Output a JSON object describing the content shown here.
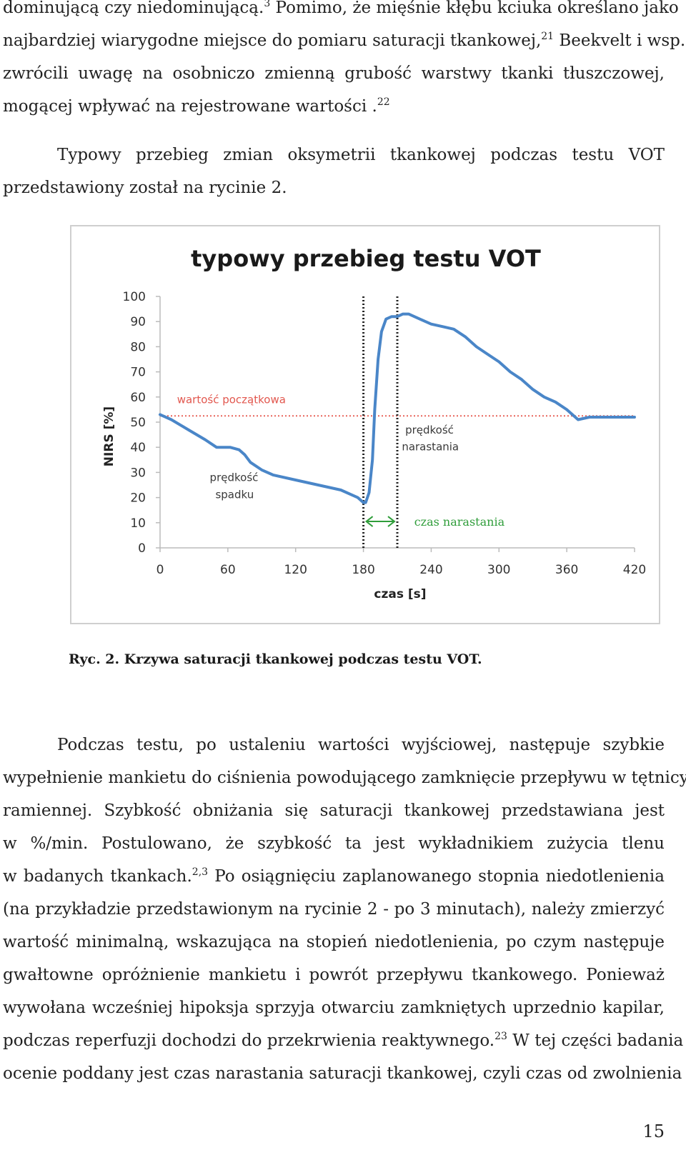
{
  "paragraph1": {
    "line1_a": "dominującą czy niedominującą.",
    "line1_sup": "3",
    "line1_b": " Pomimo, że mięśnie kłębu kciuka określano jako",
    "line2_a": "najbardziej wiarygodne miejsce do pomiaru saturacji tkankowej,",
    "line2_sup": "21",
    "line2_b": " Beekvelt i wsp.",
    "line3": "zwrócili uwagę na osobniczo zmienną grubość warstwy tkanki tłuszczowej,",
    "line4_a": "mogącej wpływać na rejestrowane wartości .",
    "line4_sup": "22"
  },
  "paragraph2": {
    "line1": "Typowy przebieg zmian oksymetrii tkankowej podczas testu VOT",
    "line2": "przedstawiony został na rycinie 2."
  },
  "chart_data": {
    "type": "line",
    "title": "typowy przebieg testu VOT",
    "xlabel": "czas [s]",
    "ylabel": "NIRS [%]",
    "xlim": [
      0,
      420
    ],
    "ylim": [
      0,
      100
    ],
    "x_ticks": [
      "0",
      "60",
      "120",
      "180",
      "240",
      "300",
      "360",
      "420"
    ],
    "y_ticks": [
      "0",
      "10",
      "20",
      "30",
      "40",
      "50",
      "60",
      "70",
      "80",
      "90",
      "100"
    ],
    "series": [
      {
        "name": "NIRS",
        "color": "#4a86c8",
        "x": [
          0,
          10,
          25,
          40,
          50,
          55,
          62,
          70,
          75,
          80,
          90,
          100,
          120,
          140,
          160,
          170,
          175,
          180,
          182,
          185,
          188,
          190,
          193,
          196,
          200,
          205,
          210,
          215,
          220,
          230,
          240,
          250,
          260,
          270,
          280,
          290,
          300,
          310,
          320,
          330,
          340,
          350,
          360,
          370,
          380,
          390,
          400,
          410,
          420
        ],
        "y": [
          53,
          51,
          47,
          43,
          40,
          40,
          40,
          39,
          37,
          34,
          31,
          29,
          27,
          25,
          23,
          21,
          20,
          18,
          18,
          22,
          35,
          55,
          75,
          86,
          91,
          92,
          92,
          93,
          93,
          91,
          89,
          88,
          87,
          84,
          80,
          77,
          74,
          70,
          67,
          63,
          60,
          58,
          55,
          51,
          52,
          52,
          52,
          52,
          52
        ]
      }
    ],
    "baseline": {
      "label": "wartość początkowa",
      "value": 52.5,
      "color": "#e8655c"
    },
    "vertical_markers": [
      180,
      210
    ],
    "annotations": {
      "fall_rate": "prędkość spadku",
      "rise_rate": "prędkość narastania",
      "rise_time": "czas narastania"
    },
    "arrow_color": "#2f9d3a"
  },
  "caption": "Ryc. 2. Krzywa saturacji tkankowej podczas testu VOT.",
  "paragraph3": {
    "line1": "Podczas testu, po ustaleniu wartości wyjściowej, następuje szybkie",
    "line2": "wypełnienie mankietu do ciśnienia powodującego zamknięcie przepływu w tętnicy",
    "line3": "ramiennej. Szybkość obniżania się saturacji tkankowej przedstawiana jest",
    "line4": "w %/min. Postulowano, że szybkość ta jest wykładnikiem zużycia tlenu",
    "line5_a": "w badanych tkankach.",
    "line5_sup": "2,3",
    "line5_b": " Po osiągnięciu zaplanowanego stopnia niedotlenienia",
    "line6": "(na przykładzie przedstawionym na rycinie 2 - po 3 minutach), należy zmierzyć",
    "line7": "wartość minimalną, wskazująca na stopień niedotlenienia, po czym następuje",
    "line8": "gwałtowne opróżnienie mankietu i powrót przepływu tkankowego. Ponieważ",
    "line9": "wywołana wcześniej hipoksja sprzyja otwarciu zamkniętych uprzednio kapilar,",
    "line10_a": "podczas reperfuzji dochodzi do przekrwienia reaktywnego.",
    "line10_sup": "23",
    "line10_b": "  W tej części badania",
    "line11": "ocenie poddany jest czas narastania saturacji tkankowej, czyli czas od zwolnienia"
  },
  "page_number": "15"
}
